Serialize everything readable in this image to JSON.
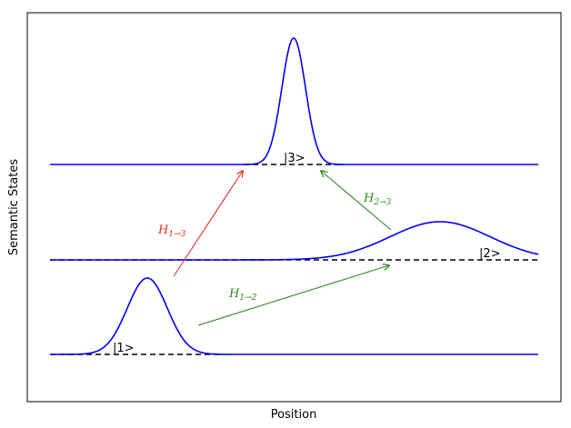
{
  "axes": {
    "xlabel": "Position",
    "ylabel": "Semantic States"
  },
  "states": [
    {
      "label": "|1>"
    },
    {
      "label": "|2>"
    },
    {
      "label": "|3>"
    }
  ],
  "transitions": [
    {
      "label_base": "H",
      "label_sub": "1→2",
      "color": "#2a8a1a"
    },
    {
      "label_base": "H",
      "label_sub": "2→3",
      "color": "#2a8a1a"
    },
    {
      "label_base": "H",
      "label_sub": "1→3",
      "color": "#e0301e"
    }
  ],
  "colors": {
    "curve": "#0000ff",
    "baseline": "#000000",
    "frame": "#000000"
  }
}
